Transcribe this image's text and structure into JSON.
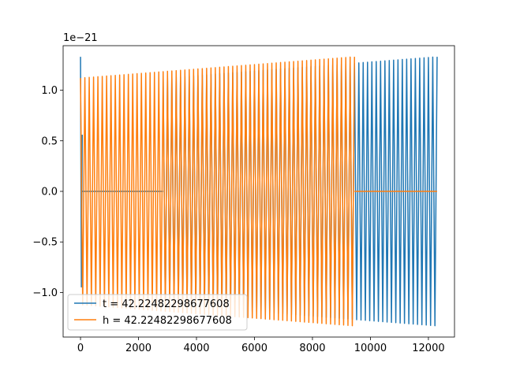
{
  "chart_data": {
    "type": "line",
    "title": "",
    "xlabel": "",
    "ylabel": "",
    "offset_label": "1e−21",
    "xlim": [
      -600,
      12900
    ],
    "ylim": [
      -1.44,
      1.44
    ],
    "x_ticks": [
      0,
      2000,
      4000,
      6000,
      8000,
      10000,
      12000
    ],
    "x_tick_labels": [
      "0",
      "2000",
      "4000",
      "6000",
      "8000",
      "10000",
      "12000"
    ],
    "y_ticks": [
      -1.0,
      -0.5,
      0.0,
      0.5,
      1.0
    ],
    "y_tick_labels": [
      "−1.0",
      "−0.5",
      "0.0",
      "0.5",
      "1.0"
    ],
    "grid": false,
    "legend_position": "lower-left",
    "series": [
      {
        "name": "t = 42.22482298677608",
        "color": "#1f77b4",
        "segments": [
          {
            "x_start": 0,
            "x_end": 60,
            "amp_start": 1.33,
            "amp_end": 0.56,
            "cycles": 1
          },
          {
            "x_start": 60,
            "x_end": 2850,
            "amp_start": 0.0,
            "amp_end": 0.0,
            "cycles": 0
          },
          {
            "x_start": 2850,
            "x_end": 12300,
            "amp_start": 1.12,
            "amp_end": 1.33,
            "cycles": 63
          }
        ]
      },
      {
        "name": "h = 42.22482298677608",
        "color": "#ff7f0e",
        "segments": [
          {
            "x_start": 0,
            "x_end": 9450,
            "amp_start": 1.12,
            "amp_end": 1.33,
            "cycles": 63
          },
          {
            "x_start": 9450,
            "x_end": 12300,
            "amp_start": 0.0,
            "amp_end": 0.0,
            "cycles": 0
          }
        ]
      }
    ]
  }
}
